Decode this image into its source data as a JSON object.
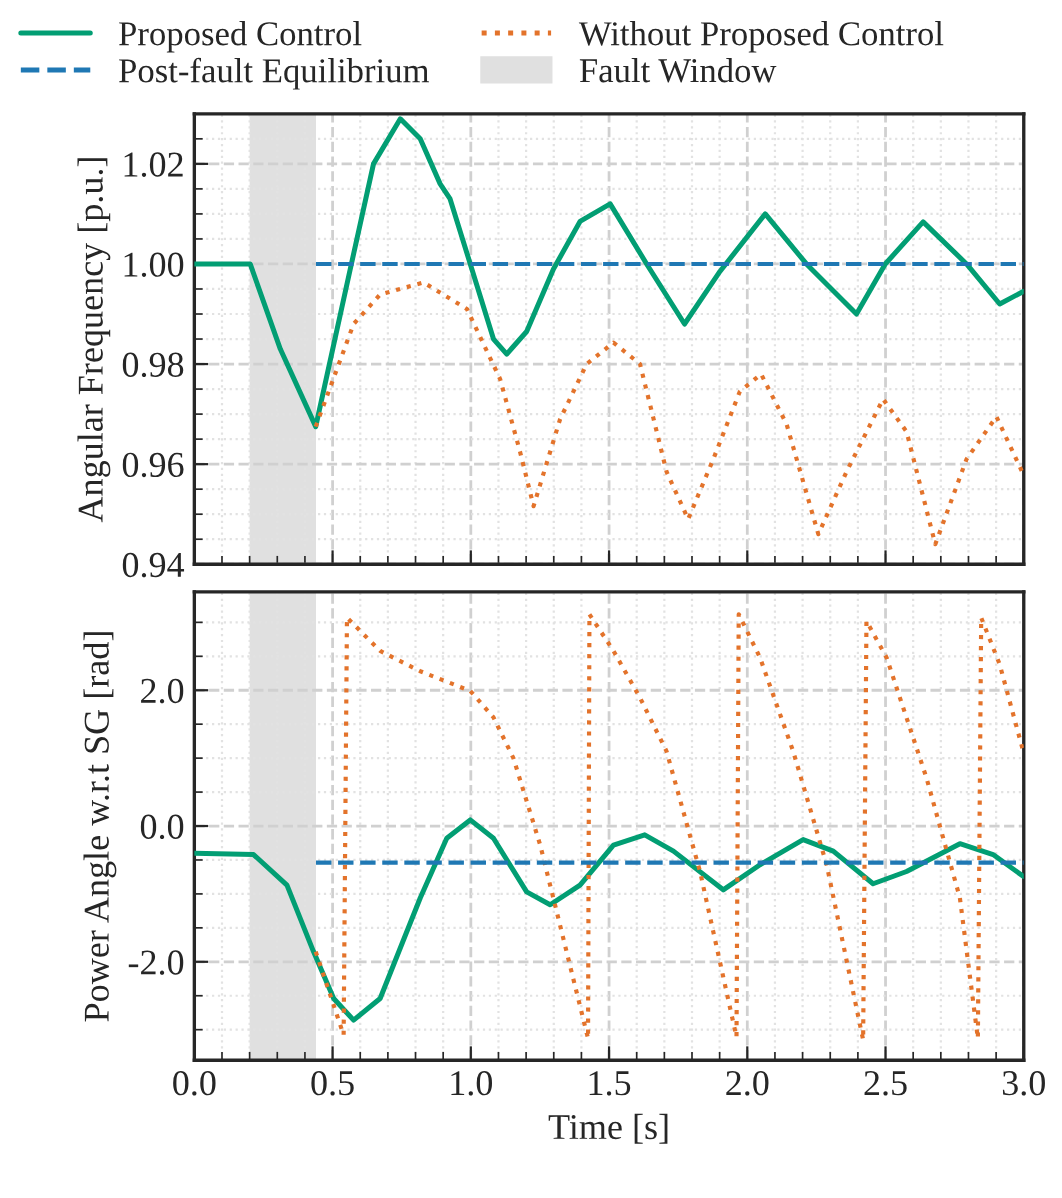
{
  "chart_data": [
    {
      "type": "line",
      "ylabel": "Angular Frequency [p.u.]",
      "xlim": [
        0,
        3
      ],
      "xticks": [
        {
          "value": 0,
          "label": null
        },
        {
          "value": 0.5,
          "label": null
        },
        {
          "value": 1,
          "label": null
        },
        {
          "value": 1.5,
          "label": null
        },
        {
          "value": 2,
          "label": null
        },
        {
          "value": 2.5,
          "label": null
        },
        {
          "value": 3,
          "label": null
        }
      ],
      "ylim": [
        0.94,
        1.03
      ],
      "yticks": [
        {
          "value": 0.94,
          "label": "0.94"
        },
        {
          "value": 0.96,
          "label": "0.96"
        },
        {
          "value": 0.98,
          "label": "0.98"
        },
        {
          "value": 1.0,
          "label": "1.00"
        },
        {
          "value": 1.02,
          "label": "1.02"
        }
      ],
      "tick_labels": "y",
      "grid": true,
      "legend": "top",
      "bands": [
        {
          "axis": "x",
          "from": 0.2,
          "to": 0.44,
          "label": "Fault Window",
          "color": "#e0e0e0"
        }
      ],
      "series": [
        {
          "name": "Proposed Control",
          "color": "#029e73",
          "line_style": "solid",
          "x": [
            0,
            0.202,
            0.311,
            0.439,
            0.564,
            0.648,
            0.745,
            0.817,
            0.889,
            0.925,
            0.998,
            1.082,
            1.13,
            1.202,
            1.299,
            1.395,
            1.504,
            1.636,
            1.773,
            1.901,
            2.065,
            2.214,
            2.395,
            2.499,
            2.636,
            2.793,
            2.913,
            2.998
          ],
          "values": [
            1.0,
            1.0,
            0.983,
            0.9675,
            0.999,
            1.02,
            1.029,
            1.025,
            1.016,
            1.013,
            1.0,
            0.985,
            0.982,
            0.9865,
            0.999,
            1.0085,
            1.012,
            1.0,
            0.988,
            0.9985,
            1.01,
            1.0,
            0.99,
            1.0,
            1.0084,
            1.0,
            0.992,
            0.9945
          ]
        },
        {
          "name": "Without Proposed Control",
          "color": "#e3732b",
          "line_style": "dotted",
          "x": [
            0.439,
            0.576,
            0.672,
            0.829,
            0.986,
            1.106,
            1.178,
            1.227,
            1.323,
            1.419,
            1.516,
            1.612,
            1.708,
            1.786,
            1.877,
            1.973,
            2.05,
            2.142,
            2.257,
            2.359,
            2.491,
            2.576,
            2.68,
            2.793,
            2.901,
            2.998
          ],
          "values": [
            0.9675,
            0.988,
            0.9939,
            0.9963,
            0.991,
            0.977,
            0.9625,
            0.9516,
            0.969,
            0.98,
            0.9843,
            0.98,
            0.9585,
            0.949,
            0.961,
            0.9745,
            0.978,
            0.968,
            0.946,
            0.9585,
            0.973,
            0.9665,
            0.944,
            0.961,
            0.9695,
            0.958
          ]
        },
        {
          "name": "Post-fault Equilibrium",
          "color": "#1f78b4",
          "line_style": "dashed",
          "x": [
            0.44,
            3.0
          ],
          "values": [
            1.0,
            1.0
          ]
        }
      ]
    },
    {
      "type": "line",
      "xlabel": "Time [s]",
      "ylabel": "Power Angle w.r.t SG [rad]",
      "xlim": [
        0,
        3
      ],
      "xticks": [
        {
          "value": 0,
          "label": "0.0"
        },
        {
          "value": 0.5,
          "label": "0.5"
        },
        {
          "value": 1,
          "label": "1.0"
        },
        {
          "value": 1.5,
          "label": "1.5"
        },
        {
          "value": 2,
          "label": "2.0"
        },
        {
          "value": 2.5,
          "label": "2.5"
        },
        {
          "value": 3,
          "label": "3.0"
        }
      ],
      "ylim": [
        -3.45,
        3.45
      ],
      "yticks": [
        {
          "value": -2,
          "label": "-2.0"
        },
        {
          "value": 0,
          "label": "0.0"
        },
        {
          "value": 2,
          "label": "2.0"
        }
      ],
      "grid": true,
      "bands": [
        {
          "axis": "x",
          "from": 0.2,
          "to": 0.44,
          "color": "#e0e0e0"
        }
      ],
      "series": [
        {
          "color": "#029e73",
          "line_style": "solid",
          "x": [
            0,
            0.214,
            0.335,
            0.431,
            0.504,
            0.576,
            0.672,
            0.817,
            0.913,
            0.998,
            1.082,
            1.202,
            1.287,
            1.395,
            1.516,
            1.629,
            1.733,
            1.913,
            2.046,
            2.202,
            2.311,
            2.455,
            2.576,
            2.769,
            2.889,
            2.998
          ],
          "values": [
            -0.4,
            -0.42,
            -0.87,
            -1.85,
            -2.54,
            -2.86,
            -2.54,
            -1.06,
            -0.18,
            0.09,
            -0.18,
            -0.97,
            -1.16,
            -0.87,
            -0.28,
            -0.13,
            -0.37,
            -0.94,
            -0.57,
            -0.2,
            -0.37,
            -0.85,
            -0.67,
            -0.26,
            -0.42,
            -0.74
          ]
        },
        {
          "color": "#e3732b",
          "line_style": "dotted",
          "x": [
            0.439,
            0.54,
            0.552,
            0.672,
            0.817,
            0.998,
            1.082,
            1.154,
            1.251,
            1.424,
            1.429,
            1.516,
            1.612,
            1.708,
            1.829,
            1.961,
            1.969,
            2.046,
            2.166,
            2.287,
            2.419,
            2.431,
            2.504,
            2.648,
            2.769,
            2.834,
            2.846,
            2.913,
            2.998
          ],
          "values": [
            -1.85,
            -3.08,
            3.07,
            2.58,
            2.28,
            1.99,
            1.6,
            1.0,
            -0.28,
            -3.13,
            3.12,
            2.58,
            1.89,
            1.1,
            -0.67,
            -3.11,
            3.12,
            2.48,
            1.1,
            -0.57,
            -3.15,
            3.02,
            2.48,
            0.71,
            -1.06,
            -3.13,
            3.07,
            2.38,
            1.1
          ]
        },
        {
          "color": "#1f78b4",
          "line_style": "dashed",
          "x": [
            0.44,
            3.0
          ],
          "values": [
            -0.54,
            -0.54
          ]
        }
      ]
    }
  ]
}
